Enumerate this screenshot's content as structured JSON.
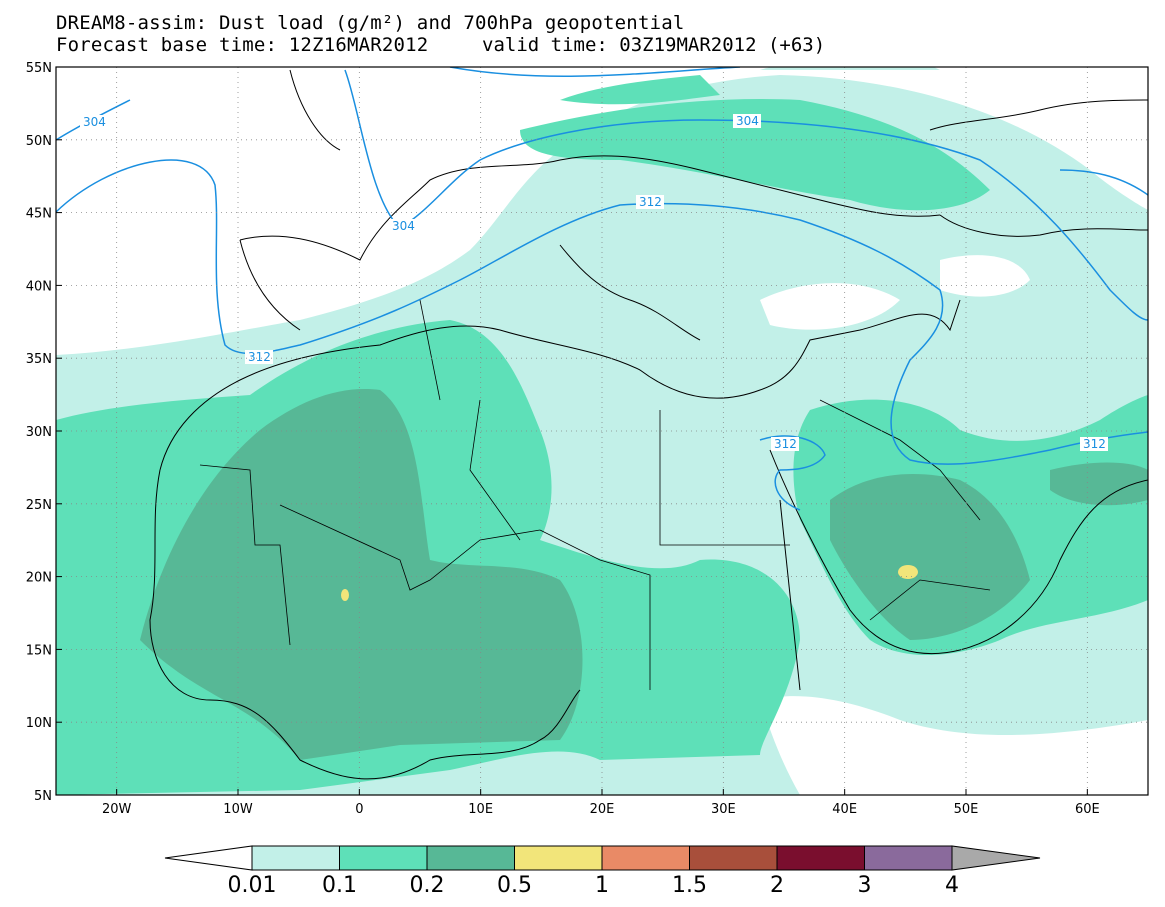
{
  "title": {
    "line1": "DREAM8-assim: Dust load (g/m²) and 700hPa geopotential",
    "line2": "Forecast base time: 12Z16MAR2012",
    "valid": "valid time: 03Z19MAR2012 (+63)"
  },
  "map": {
    "lon_range": [
      -25,
      65
    ],
    "lat_range": [
      5,
      55
    ],
    "lat_ticks": [
      "5N",
      "10N",
      "15N",
      "20N",
      "25N",
      "30N",
      "35N",
      "40N",
      "45N",
      "50N",
      "55N"
    ],
    "lon_ticks": [
      "20W",
      "10W",
      "0",
      "10E",
      "20E",
      "30E",
      "40E",
      "50E",
      "60E"
    ],
    "grid": "dotted",
    "colors": {
      "level_0_01": "#c2f0e8",
      "level_0_1": "#5ee0b8",
      "level_0_2": "#57b896",
      "level_0_5": "#f2e57a",
      "contour": "#1a8fe0"
    },
    "contour_labels": [
      "304",
      "304",
      "304",
      "312",
      "312",
      "312",
      "312"
    ]
  },
  "legend": {
    "colors": [
      "#c2f0e8",
      "#5ee0b8",
      "#57b896",
      "#f2e57a",
      "#e98a66",
      "#a84f3b",
      "#7a0e2e",
      "#8a6a9c"
    ],
    "labels": [
      "0.01",
      "0.1",
      "0.2",
      "0.5",
      "1",
      "1.5",
      "2",
      "3",
      "4"
    ]
  }
}
